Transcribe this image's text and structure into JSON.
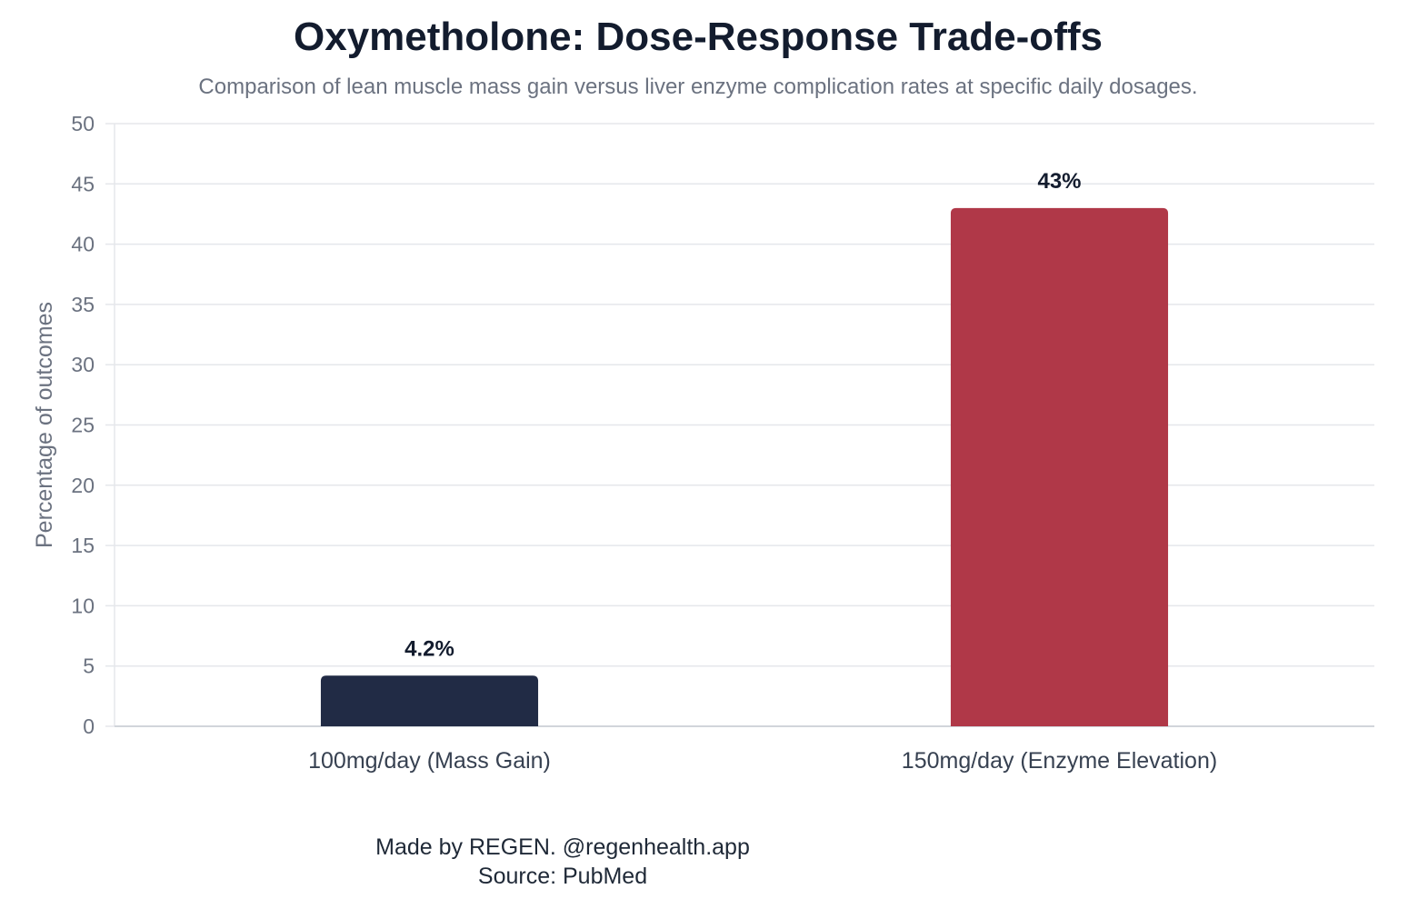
{
  "chart_data": {
    "type": "bar",
    "title": "Oxymetholone: Dose-Response Trade-offs",
    "subtitle": "Comparison of lean muscle mass gain versus liver enzyme complication rates at specific daily dosages.",
    "xlabel": "",
    "ylabel": "Percentage of outcomes",
    "ylim": [
      0,
      50
    ],
    "yticks": [
      0,
      5,
      10,
      15,
      20,
      25,
      30,
      35,
      40,
      45,
      50
    ],
    "grid": true,
    "categories": [
      "100mg/day (Mass Gain)",
      "150mg/day (Enzyme Elevation)"
    ],
    "values": [
      4.2,
      43
    ],
    "data_labels": [
      "4.2%",
      "43%"
    ],
    "colors": [
      "#212b45",
      "#b03848"
    ]
  },
  "footer": {
    "credit": "Made by REGEN. @regenhealth.app",
    "source": "Source: PubMed"
  }
}
